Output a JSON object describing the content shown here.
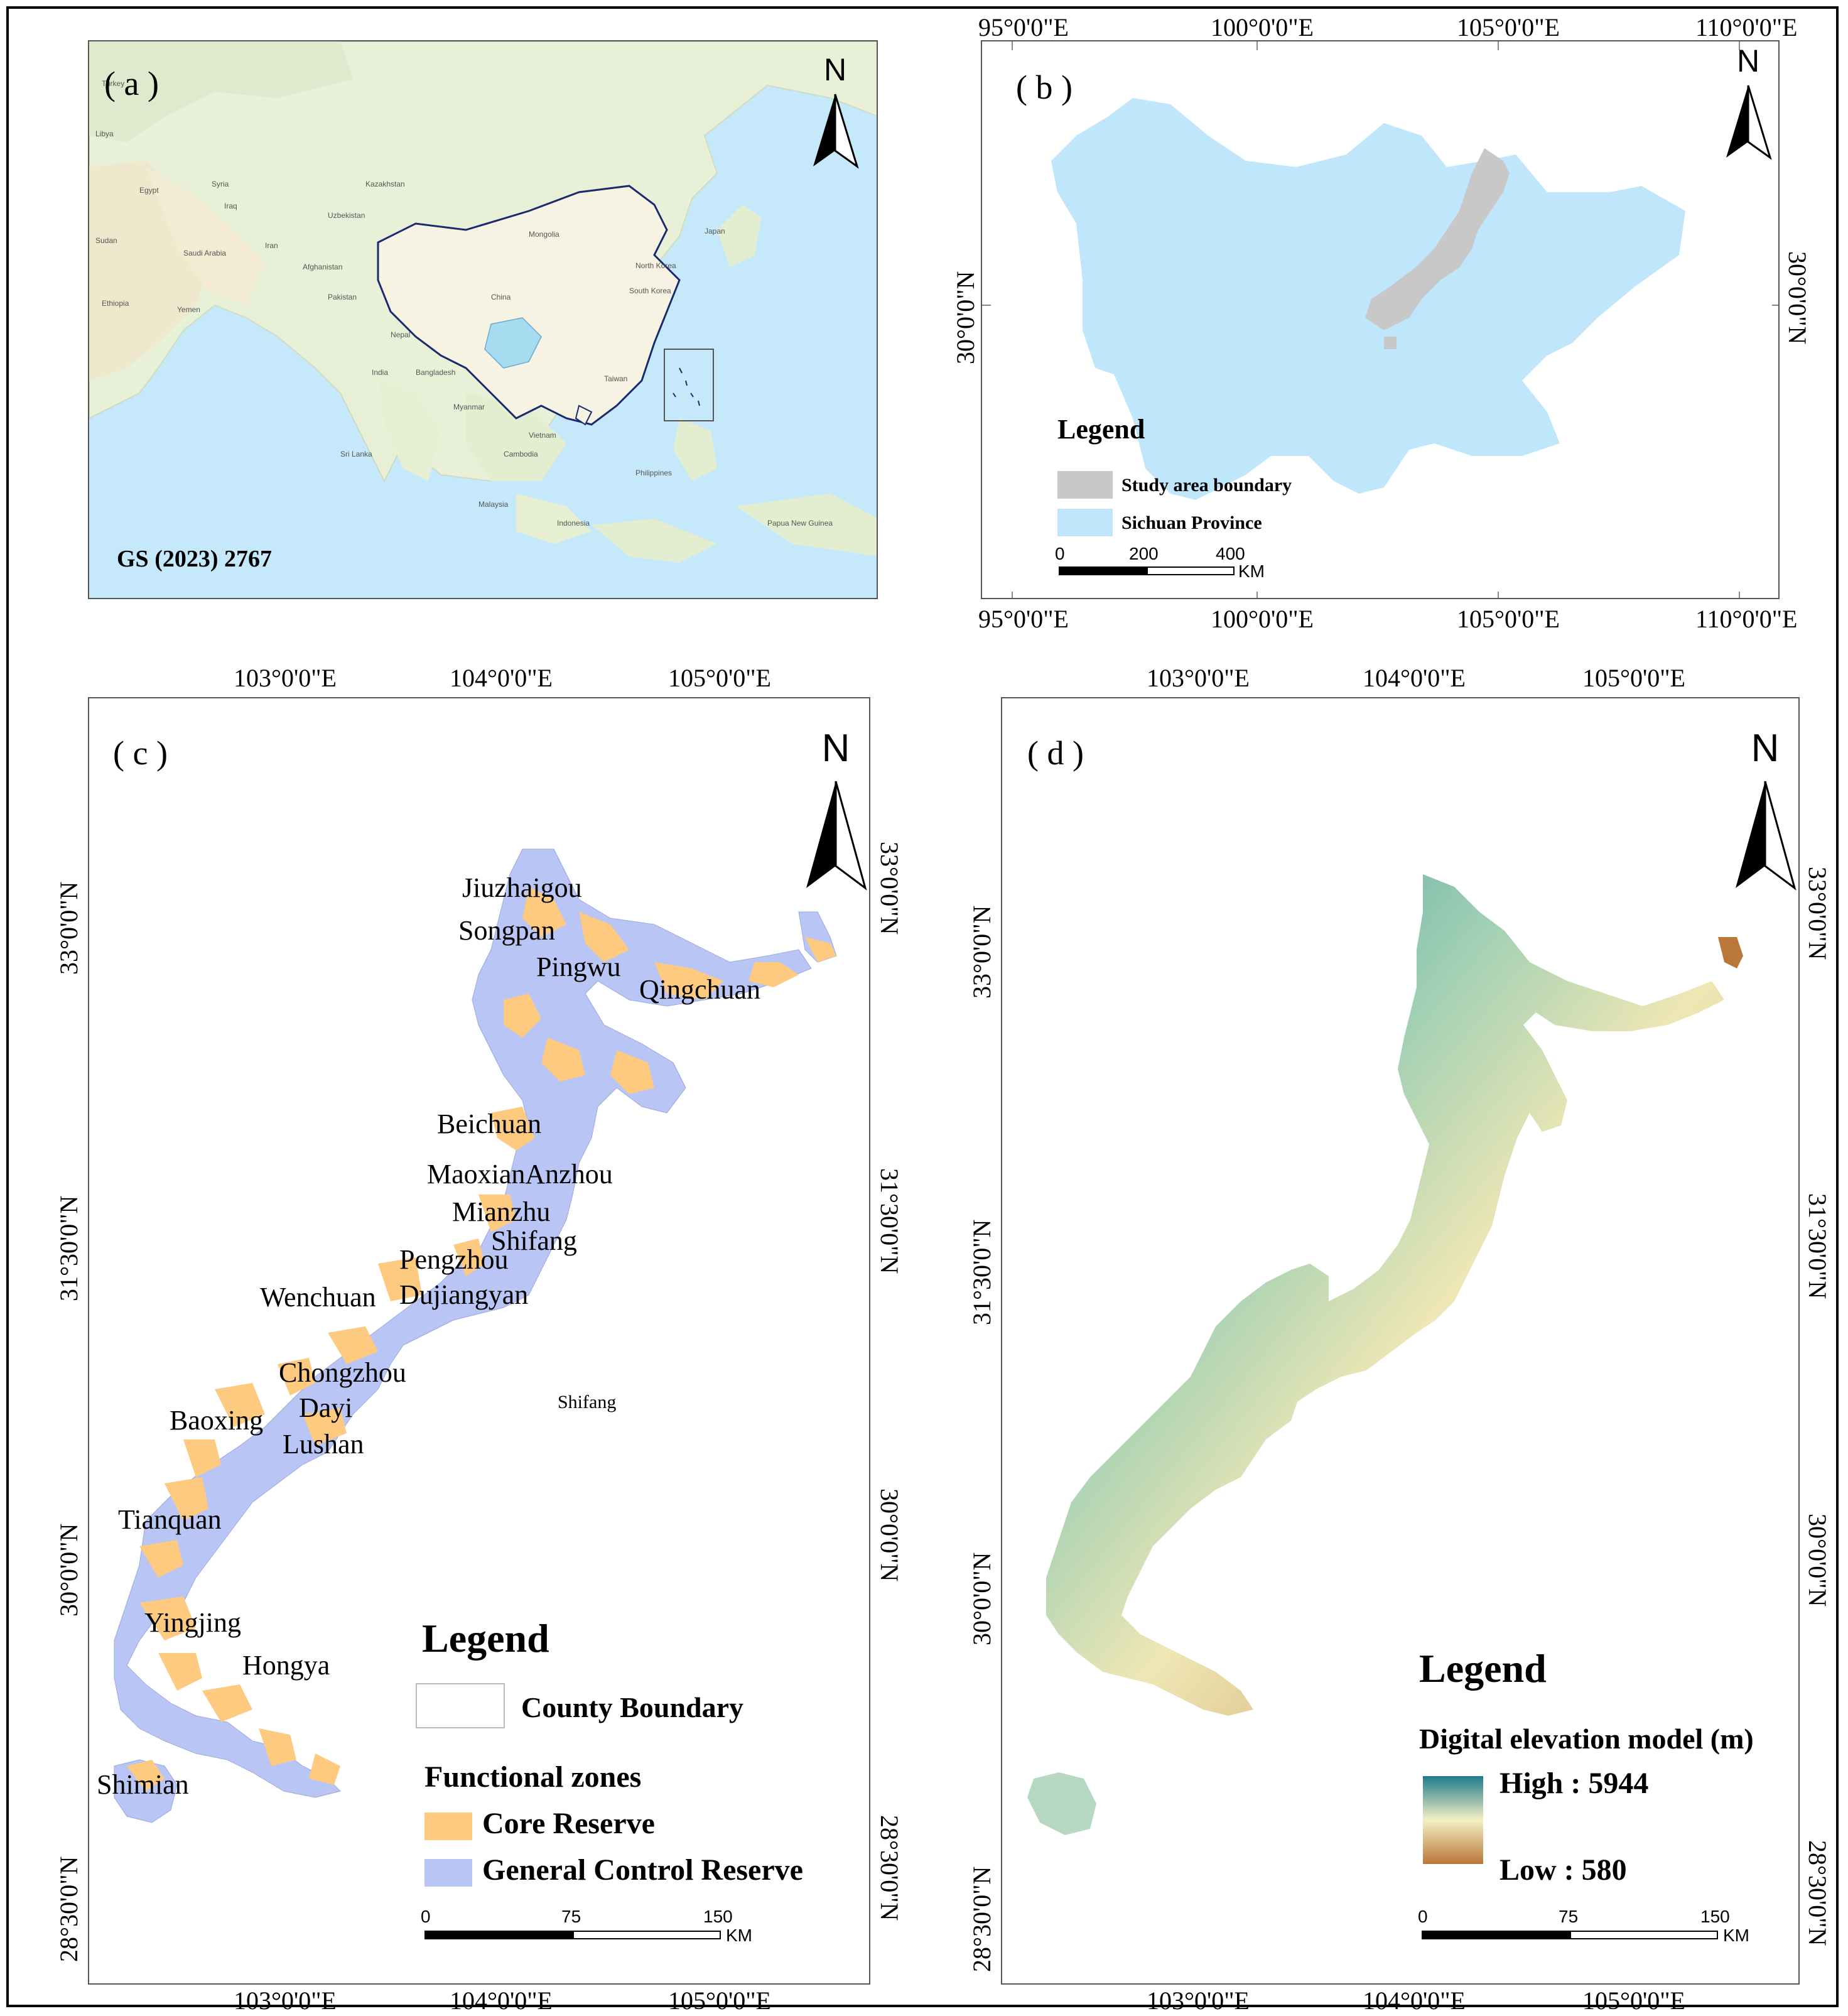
{
  "panel_a": {
    "label": "( a )",
    "code": "GS (2023) 2767",
    "north": "N",
    "countries": [
      "Turkey",
      "Libya",
      "Egypt",
      "Sudan",
      "Ethiopia",
      "Saudi Arabia",
      "Yemen",
      "Syria",
      "Iraq",
      "Iran",
      "Afghanistan",
      "Pakistan",
      "Uzbekistan",
      "Kazakhstan",
      "Mongolia",
      "China",
      "Nepal",
      "India",
      "Bangladesh",
      "Myanmar",
      "Sri Lanka",
      "Vietnam",
      "Cambodia",
      "Malaysia",
      "Indonesia",
      "Philippines",
      "Papua New Guinea",
      "South Korea",
      "North Korea",
      "Japan",
      "Taiwan"
    ]
  },
  "panel_b": {
    "label": "( b )",
    "north": "N",
    "top_ticks": [
      "95°0'0\"E",
      "100°0'0\"E",
      "105°0'0\"E",
      "110°0'0\"E"
    ],
    "bottom_ticks": [
      "95°0'0\"E",
      "100°0'0\"E",
      "105°0'0\"E",
      "110°0'0\"E"
    ],
    "left_tick": "30°0'0\"N",
    "right_tick": "30°0'0\"N",
    "legend": {
      "title": "Legend",
      "items": [
        {
          "label": "Study area  boundary",
          "color": "#c8c8c8"
        },
        {
          "label": "Sichuan Province",
          "color": "#bfe6fb"
        }
      ]
    },
    "scale": {
      "ticks": [
        "0",
        "200",
        "400"
      ],
      "unit": "KM"
    }
  },
  "panel_c": {
    "label": "( c )",
    "north": "N",
    "top_ticks": [
      "103°0'0\"E",
      "104°0'0\"E",
      "105°0'0\"E"
    ],
    "bottom_ticks": [
      "103°0'0\"E",
      "104°0'0\"E",
      "105°0'0\"E"
    ],
    "left_ticks": [
      "33°0'0\"N",
      "31°30'0\"N",
      "30°0'0\"N",
      "28°30'0\"N"
    ],
    "right_ticks": [
      "33°0'0\"N",
      "31°30'0\"N",
      "30°0'0\"N",
      "28°30'0\"N"
    ],
    "counties": [
      "Jiuzhaigou",
      "Songpan",
      "Pingwu",
      "Qingchuan",
      "Beichuan",
      "MaoxianAnzhou",
      "Mianzhu",
      "Shifang",
      "Pengzhou",
      "Wenchuan",
      "Dujiangyan",
      "Chongzhou",
      "Dayi",
      "Baoxing",
      "Lushan",
      "Tianquan",
      "Yingjing",
      "Hongya",
      "Shimian"
    ],
    "stray_label": "Shifang",
    "legend": {
      "title": "Legend",
      "county_boundary": "County Boundary",
      "zones_title": "Functional zones",
      "items": [
        {
          "label": "Core Reserve",
          "color": "#fdca80"
        },
        {
          "label": "General Control Reserve",
          "color": "#b9c6f5"
        }
      ]
    },
    "scale": {
      "ticks": [
        "0",
        "75",
        "150"
      ],
      "unit": "KM"
    }
  },
  "panel_d": {
    "label": "( d )",
    "north": "N",
    "top_ticks": [
      "103°0'0\"E",
      "104°0'0\"E",
      "105°0'0\"E"
    ],
    "bottom_ticks": [
      "103°0'0\"E",
      "104°0'0\"E",
      "105°0'0\"E"
    ],
    "left_ticks": [
      "33°0'0\"N",
      "31°30'0\"N",
      "30°0'0\"N",
      "28°30'0\"N"
    ],
    "right_ticks": [
      "33°0'0\"N",
      "31°30'0\"N",
      "30°0'0\"N",
      "28°30'0\"N"
    ],
    "legend": {
      "title": "Legend",
      "subtitle": "Digital elevation model (m)",
      "high": "High : 5944",
      "low": "Low : 580",
      "colors": {
        "high": "#1f7a8c",
        "mid": "#f4f0c4",
        "low": "#b9783a"
      }
    },
    "scale": {
      "ticks": [
        "0",
        "75",
        "150"
      ],
      "unit": "KM"
    }
  }
}
